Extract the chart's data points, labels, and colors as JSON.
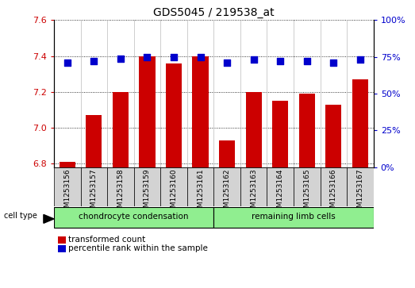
{
  "title": "GDS5045 / 219538_at",
  "samples": [
    "GSM1253156",
    "GSM1253157",
    "GSM1253158",
    "GSM1253159",
    "GSM1253160",
    "GSM1253161",
    "GSM1253162",
    "GSM1253163",
    "GSM1253164",
    "GSM1253165",
    "GSM1253166",
    "GSM1253167"
  ],
  "transformed_count": [
    6.81,
    7.07,
    7.2,
    7.4,
    7.36,
    7.4,
    6.93,
    7.2,
    7.15,
    7.19,
    7.13,
    7.27
  ],
  "percentile_rank": [
    71,
    72,
    74,
    75,
    75,
    75,
    71,
    73,
    72,
    72,
    71,
    73
  ],
  "ylim_left": [
    6.78,
    7.6
  ],
  "ylim_right": [
    0,
    100
  ],
  "yticks_left": [
    6.8,
    7.0,
    7.2,
    7.4,
    7.6
  ],
  "yticks_right": [
    0,
    25,
    50,
    75,
    100
  ],
  "bar_color": "#cc0000",
  "dot_color": "#0000cc",
  "cell_type_label": "cell type",
  "group1_label": "chondrocyte condensation",
  "group2_label": "remaining limb cells",
  "group1_indices": [
    0,
    1,
    2,
    3,
    4,
    5
  ],
  "group2_indices": [
    6,
    7,
    8,
    9,
    10,
    11
  ],
  "group_color": "#90ee90",
  "legend_bar_label": "transformed count",
  "legend_dot_label": "percentile rank within the sample",
  "sample_bg_color": "#d3d3d3",
  "bar_width": 0.6
}
